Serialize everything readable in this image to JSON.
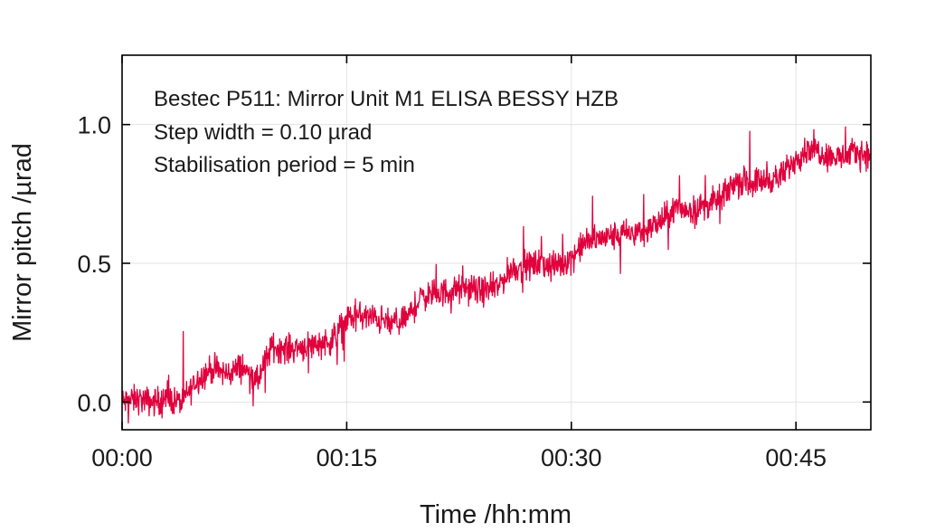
{
  "chart_data": {
    "type": "line",
    "xlabel": "Time /hh:mm",
    "ylabel": "Mirror pitch /µrad",
    "xlim": [
      0,
      50
    ],
    "ylim": [
      -0.1,
      1.25
    ],
    "x_ticks": [
      0,
      15,
      30,
      45
    ],
    "x_tick_labels": [
      "00:00",
      "00:15",
      "00:30",
      "00:45"
    ],
    "y_ticks": [
      0.0,
      0.5,
      1.0
    ],
    "y_tick_labels": [
      "0.0",
      "0.5",
      "1.0"
    ],
    "grid": true,
    "annotations": [
      "Bestec P511: Mirror Unit M1 ELISA BESSY HZB",
      "Step width = 0.10 µrad",
      "Stabilisation period = 5 min"
    ],
    "colors": {
      "series": "#e0003c"
    },
    "series": [
      {
        "x": [
          0,
          1,
          2,
          3,
          4,
          5,
          6,
          7,
          8,
          9,
          10,
          11,
          12,
          13,
          14,
          15,
          16,
          17,
          18,
          19,
          20,
          21,
          22,
          23,
          24,
          25,
          26,
          27,
          28,
          29,
          30,
          31,
          32,
          33,
          34,
          35,
          36,
          37,
          38,
          39,
          40,
          41,
          42,
          43,
          44,
          45,
          46,
          47,
          48,
          49,
          50
        ],
        "values": [
          0.0,
          0.01,
          0.0,
          0.01,
          0.0,
          0.08,
          0.12,
          0.1,
          0.13,
          0.07,
          0.2,
          0.19,
          0.2,
          0.21,
          0.22,
          0.3,
          0.31,
          0.3,
          0.28,
          0.3,
          0.38,
          0.39,
          0.4,
          0.41,
          0.4,
          0.41,
          0.48,
          0.49,
          0.5,
          0.49,
          0.52,
          0.58,
          0.59,
          0.6,
          0.61,
          0.62,
          0.65,
          0.7,
          0.69,
          0.71,
          0.73,
          0.8,
          0.79,
          0.8,
          0.81,
          0.88,
          0.92,
          0.89,
          0.88,
          0.9,
          0.89
        ]
      }
    ]
  }
}
